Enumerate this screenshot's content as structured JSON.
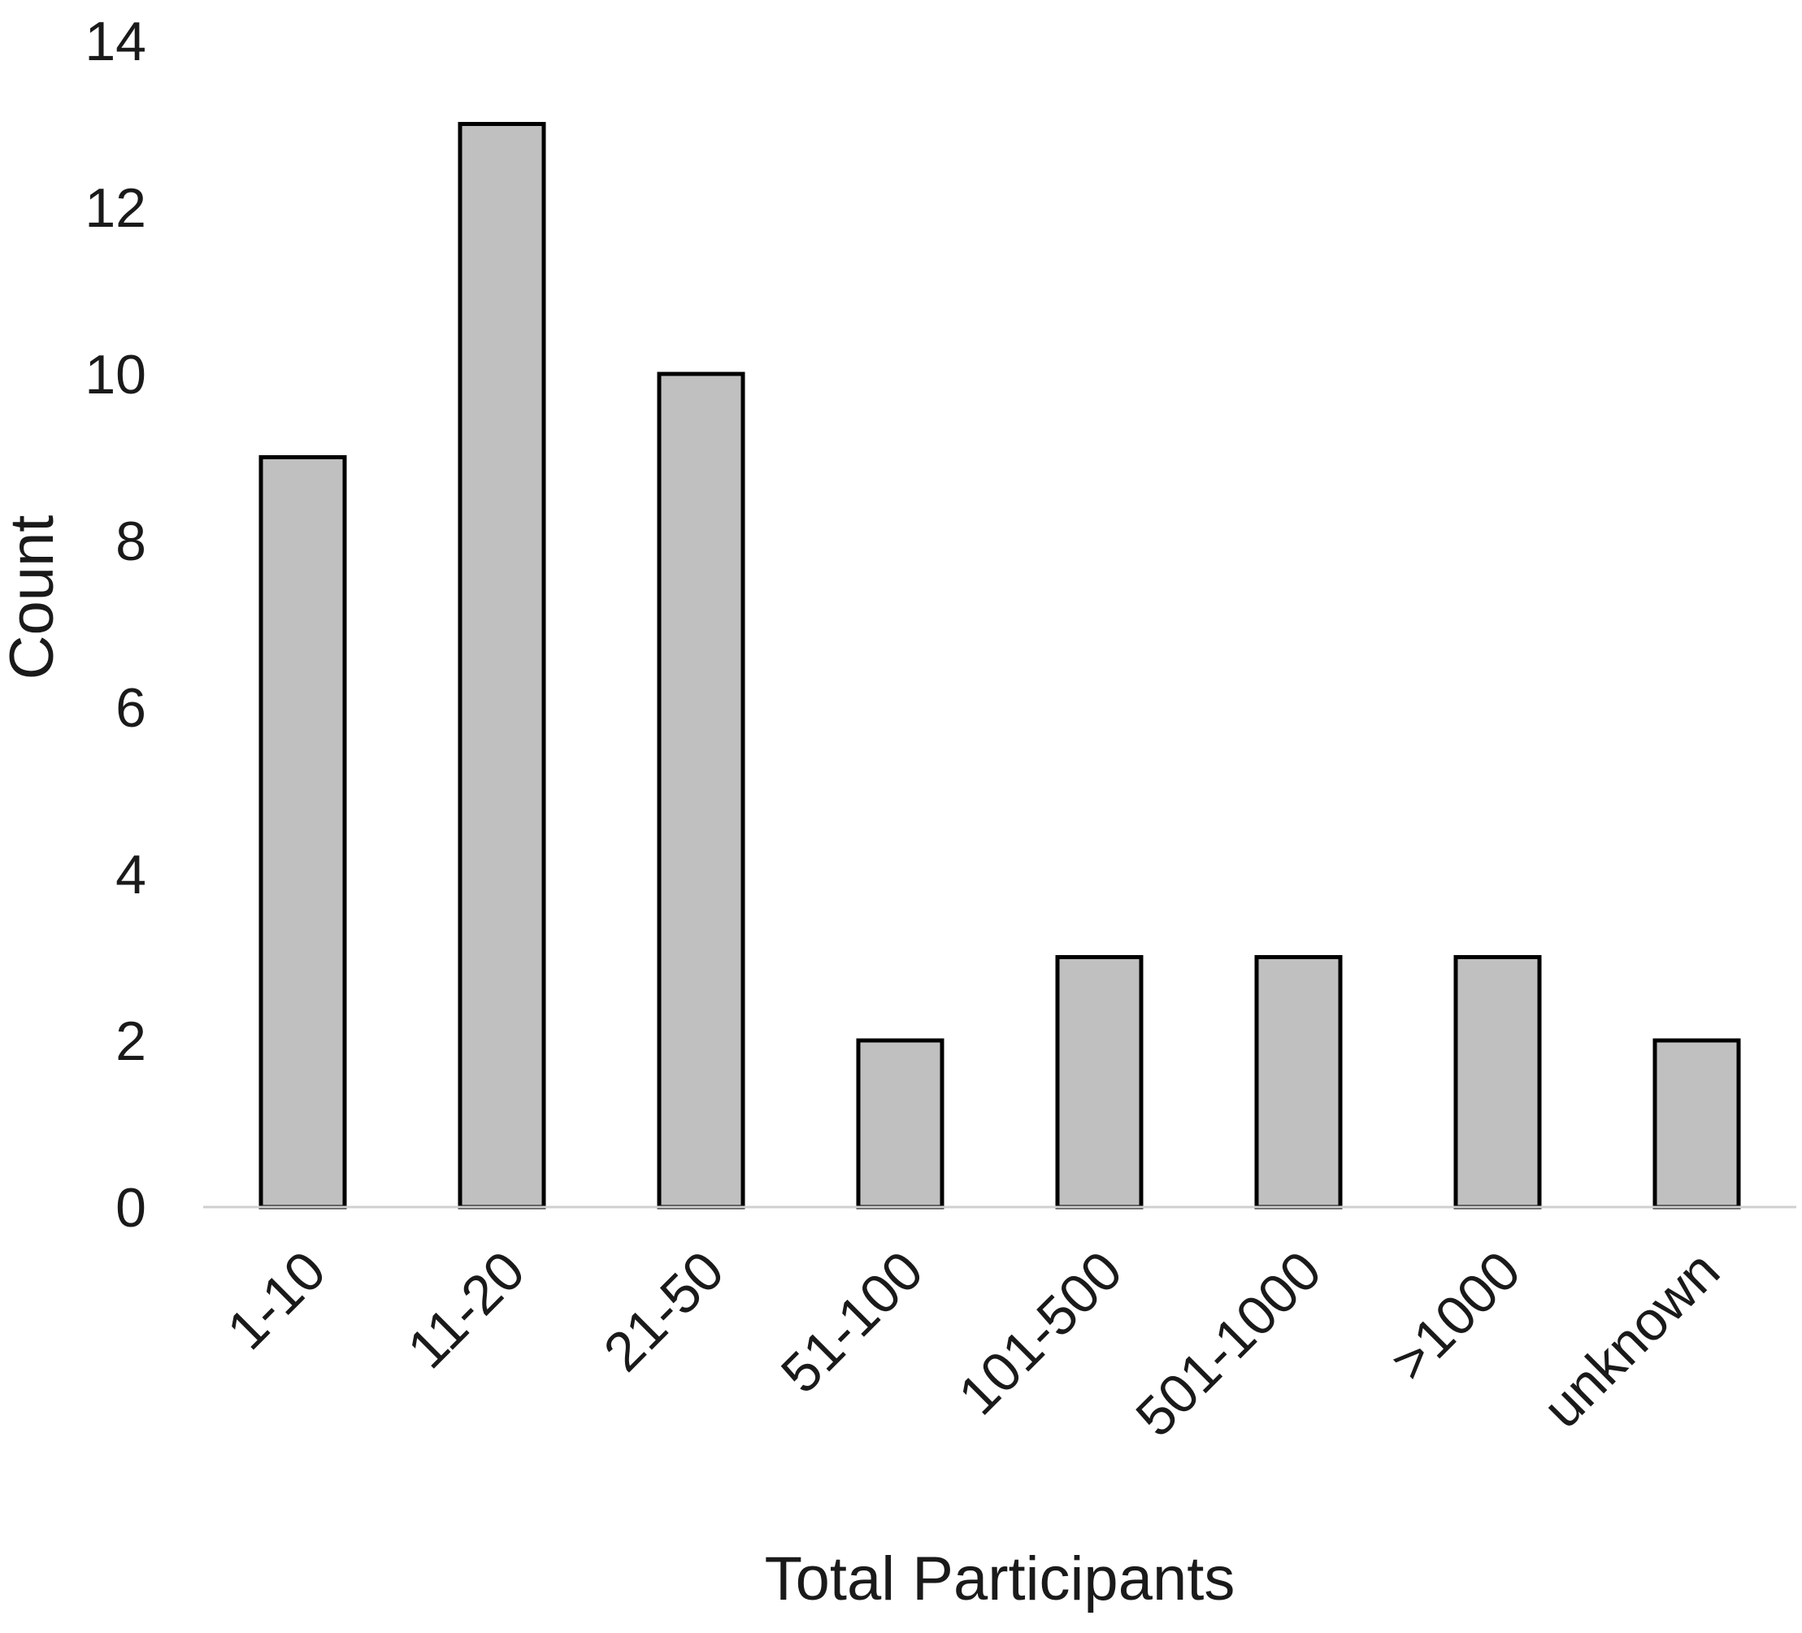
{
  "chart_data": {
    "type": "bar",
    "xlabel": "Total Participants",
    "ylabel": "Count",
    "categories": [
      "1-10",
      "11-20",
      "21-50",
      "51-100",
      "101-500",
      "501-1000",
      ">1000",
      "unknown"
    ],
    "values": [
      9,
      13,
      10,
      2,
      3,
      3,
      3,
      2
    ],
    "ylim": [
      0,
      14
    ],
    "yticks": [
      "0",
      "2",
      "4",
      "6",
      "8",
      "10",
      "12",
      "14"
    ],
    "grid": false,
    "legend": "none",
    "bar_color": "#c0c0c0",
    "bar_edge_color": "#000000"
  }
}
